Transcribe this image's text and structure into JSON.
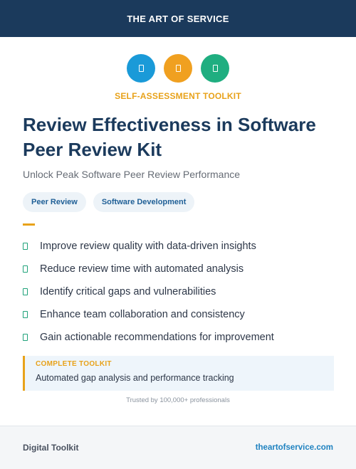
{
  "header": {
    "brand": "THE ART OF SERVICE"
  },
  "icons": [
    {
      "name": "blue-icon",
      "color": "#1a9ad8"
    },
    {
      "name": "orange-icon",
      "color": "#f0a020"
    },
    {
      "name": "green-icon",
      "color": "#1fae80"
    }
  ],
  "hero": {
    "label": "SELF-ASSESSMENT TOOLKIT",
    "title": "Review Effectiveness in Software Peer Review Kit",
    "subtitle": "Unlock Peak Software Peer Review Performance"
  },
  "tags": [
    "Peer Review",
    "Software Development"
  ],
  "benefits": [
    "Improve review quality with data-driven insights",
    "Reduce review time with automated analysis",
    "Identify critical gaps and vulnerabilities",
    "Enhance team collaboration and consistency",
    "Gain actionable recommendations for improvement"
  ],
  "callout": {
    "label": "COMPLETE TOOLKIT",
    "description": "Automated gap analysis and performance tracking"
  },
  "trusted": "Trusted by 100,000+ professionals",
  "footer": {
    "left": "Digital Toolkit",
    "right": "theartofservice.com"
  },
  "colors": {
    "navy": "#1b3a5c",
    "accent": "#e8a21a",
    "check": "#1fa27a",
    "link": "#1f82c0"
  }
}
